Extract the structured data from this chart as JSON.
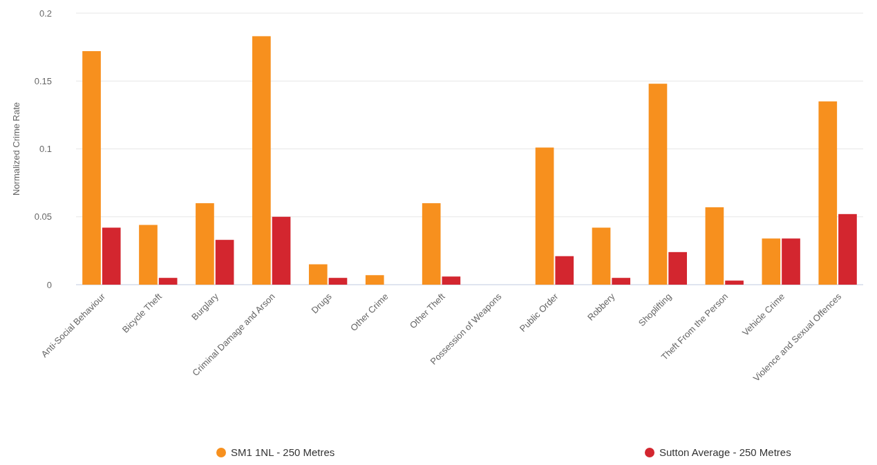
{
  "chart_data": {
    "type": "bar",
    "ylabel": "Normalized Crime Rate",
    "categories": [
      "Anti-Social Behaviour",
      "Bicycle Theft",
      "Burglary",
      "Criminal Damage and Arson",
      "Drugs",
      "Other Crime",
      "Other Theft",
      "Possession of Weapons",
      "Public Order",
      "Robbery",
      "Shoplifting",
      "Theft From the Person",
      "Vehicle Crime",
      "Violence and Sexual Offences"
    ],
    "series": [
      {
        "name": "SM1 1NL - 250 Metres",
        "color": "#f7901e",
        "values": [
          0.172,
          0.044,
          0.06,
          0.183,
          0.015,
          0.007,
          0.06,
          0,
          0.101,
          0.042,
          0.148,
          0.057,
          0.034,
          0.135
        ]
      },
      {
        "name": "Sutton Average - 250 Metres",
        "color": "#d3262f",
        "values": [
          0.042,
          0.005,
          0.033,
          0.05,
          0.005,
          0,
          0.006,
          0,
          0.021,
          0.005,
          0.024,
          0.003,
          0.034,
          0.052
        ]
      }
    ],
    "ylim": [
      0,
      0.2
    ],
    "yticks": [
      0,
      0.05,
      0.1,
      0.15,
      0.2
    ],
    "grid": "y",
    "legend": "bottom"
  }
}
